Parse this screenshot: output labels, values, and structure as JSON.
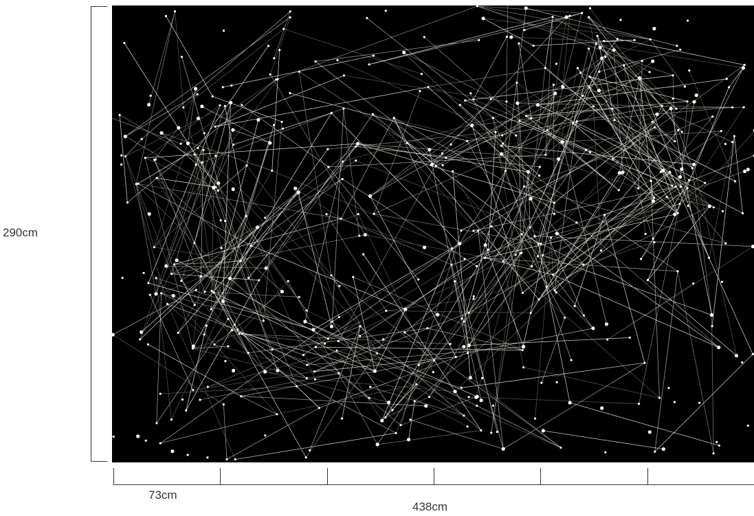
{
  "dimensions": {
    "height_label": "290cm",
    "panel_width_label": "73cm",
    "total_width_label": "438cm",
    "panel_count": 6
  },
  "artwork": {
    "description_icon": "constellation-network-pattern",
    "background_color": "#000000",
    "line_color": "#e8e6dc",
    "node_color": "#ffffff"
  },
  "colors": {
    "page_background": "#ffffff",
    "ruler_line": "#333333",
    "label_text": "#333333"
  }
}
